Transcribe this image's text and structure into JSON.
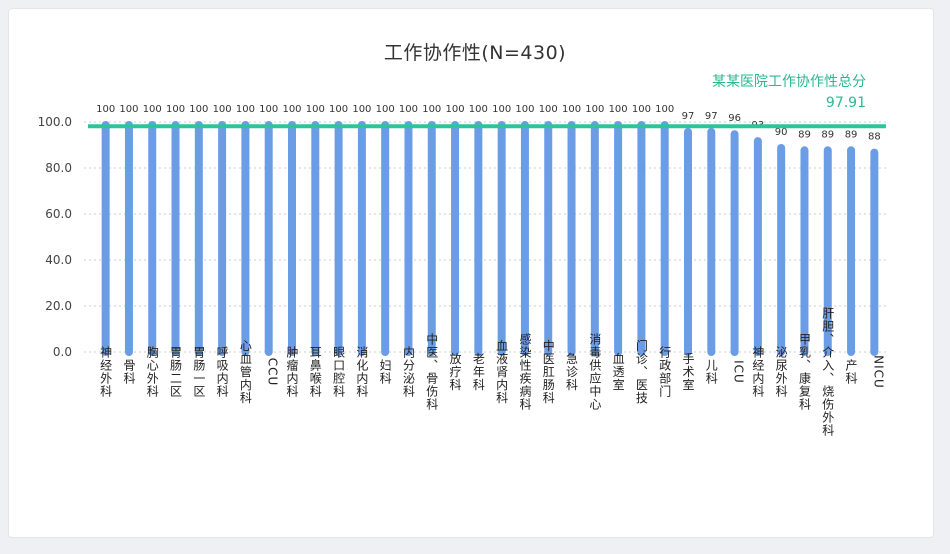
{
  "chart_data": {
    "type": "bar",
    "title": "工作协作性(N=430)",
    "ylim": [
      0,
      100
    ],
    "yticks": [
      "0.0",
      "20.0",
      "40.0",
      "60.0",
      "80.0",
      "100.0"
    ],
    "grid": true,
    "categories": [
      "神经外科",
      "骨科",
      "胸心外科",
      "胃肠二区",
      "胃肠一区",
      "呼吸内科",
      "心血管内科",
      "CCU",
      "肿瘤内科",
      "耳鼻喉科",
      "眼口腔科",
      "消化内科",
      "妇科",
      "内分泌科",
      "中医、骨伤科",
      "放疗科",
      "老年科",
      "血液肾内科",
      "感染性疾病科",
      "中医肛肠科",
      "急诊科",
      "消毒供应中心",
      "血透室",
      "门诊、医技",
      "行政部门",
      "手术室",
      "儿科",
      "ICU",
      "神经内科",
      "泌尿外科",
      "甲乳、康复科",
      "肝胆、介入、烧伤外科",
      "产科",
      "NICU"
    ],
    "values": [
      100,
      100,
      100,
      100,
      100,
      100,
      100,
      100,
      100,
      100,
      100,
      100,
      100,
      100,
      100,
      100,
      100,
      100,
      100,
      100,
      100,
      100,
      100,
      100,
      100,
      97,
      97,
      96,
      93,
      90,
      89,
      89,
      89,
      88
    ],
    "reference_line": {
      "label": "某某医院工作协作性总分",
      "value": 97.91,
      "value_text": "97.91"
    },
    "colors": {
      "bar": "#6a9de6",
      "reference": "#2fc39a",
      "grid": "#c8ccd2"
    }
  }
}
